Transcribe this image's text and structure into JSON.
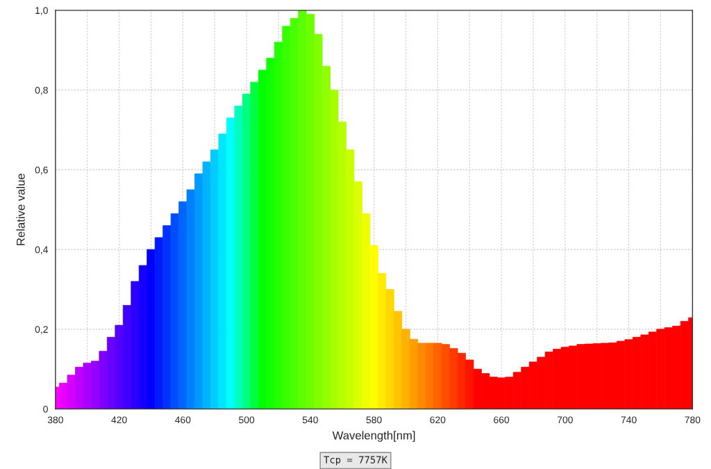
{
  "chart_data": {
    "type": "bar",
    "xlabel": "Wavelength[nm]",
    "ylabel": "Relative value",
    "x": [
      380,
      385,
      390,
      395,
      400,
      405,
      410,
      415,
      420,
      425,
      430,
      435,
      440,
      445,
      450,
      455,
      460,
      465,
      470,
      475,
      480,
      485,
      490,
      495,
      500,
      505,
      510,
      515,
      520,
      525,
      530,
      535,
      540,
      545,
      550,
      555,
      560,
      565,
      570,
      575,
      580,
      585,
      590,
      595,
      600,
      605,
      610,
      615,
      620,
      625,
      630,
      635,
      640,
      645,
      650,
      655,
      660,
      665,
      670,
      675,
      680,
      685,
      690,
      695,
      700,
      705,
      710,
      715,
      720,
      725,
      730,
      735,
      740,
      745,
      750,
      755,
      760,
      765,
      770,
      775,
      780
    ],
    "values": [
      0.055,
      0.065,
      0.085,
      0.105,
      0.115,
      0.12,
      0.145,
      0.18,
      0.21,
      0.26,
      0.32,
      0.36,
      0.4,
      0.43,
      0.46,
      0.49,
      0.52,
      0.55,
      0.59,
      0.62,
      0.65,
      0.69,
      0.73,
      0.76,
      0.79,
      0.82,
      0.85,
      0.88,
      0.92,
      0.96,
      0.98,
      1.0,
      0.99,
      0.94,
      0.86,
      0.8,
      0.72,
      0.65,
      0.57,
      0.49,
      0.41,
      0.34,
      0.3,
      0.245,
      0.2,
      0.175,
      0.165,
      0.165,
      0.165,
      0.162,
      0.152,
      0.14,
      0.123,
      0.1,
      0.089,
      0.08,
      0.078,
      0.08,
      0.092,
      0.105,
      0.118,
      0.13,
      0.143,
      0.15,
      0.155,
      0.158,
      0.162,
      0.163,
      0.164,
      0.165,
      0.166,
      0.17,
      0.174,
      0.18,
      0.186,
      0.193,
      0.2,
      0.204,
      0.208,
      0.22,
      0.229
    ],
    "colors": [
      "#ff00ff",
      "#ea00ff",
      "#d500ff",
      "#bf00ff",
      "#aa00ff",
      "#9500ff",
      "#8000ff",
      "#6a00ff",
      "#5500ff",
      "#4000ff",
      "#2b00ff",
      "#1500ff",
      "#0000ff",
      "#001aff",
      "#0033ff",
      "#004dff",
      "#0066ff",
      "#0080ff",
      "#0099ff",
      "#00b3ff",
      "#00ccff",
      "#00e6ff",
      "#00ffff",
      "#00ffbf",
      "#00ff80",
      "#00ff40",
      "#00ff00",
      "#12ff00",
      "#24ff00",
      "#37ff00",
      "#49ff00",
      "#5bff00",
      "#6dff00",
      "#80ff00",
      "#92ff00",
      "#a4ff00",
      "#b6ff00",
      "#c8ff00",
      "#dbff00",
      "#edff00",
      "#ffff00",
      "#ffeb00",
      "#ffd800",
      "#ffc400",
      "#ffb100",
      "#ff9d00",
      "#ff8900",
      "#ff7600",
      "#ff6200",
      "#ff4e00",
      "#ff3b00",
      "#ff2700",
      "#ff1400",
      "#ff0000",
      "#ff0000",
      "#ff0000",
      "#ff0000",
      "#ff0000",
      "#ff0000",
      "#ff0000",
      "#ff0000",
      "#ff0000",
      "#ff0000",
      "#ff0000",
      "#ff0000",
      "#ff0000",
      "#ff0000",
      "#ff0000",
      "#ff0000",
      "#ff0000",
      "#ff0000",
      "#ff0000",
      "#ff0000",
      "#ff0000",
      "#ff0000",
      "#ff0000",
      "#ff0000",
      "#ff0000",
      "#ff0000",
      "#ff0000",
      "#ff0000"
    ],
    "xlim": [
      380,
      780
    ],
    "xticks": [
      380,
      {
        "value": 400,
        "label": null
      },
      420,
      {
        "value": 440,
        "label": null
      },
      460,
      {
        "value": 480,
        "label": null
      },
      500,
      {
        "value": 520,
        "label": null
      },
      540,
      {
        "value": 560,
        "label": null
      },
      580,
      {
        "value": 600,
        "label": null
      },
      620,
      {
        "value": 640,
        "label": null
      },
      660,
      {
        "value": 680,
        "label": null
      },
      700,
      {
        "value": 720,
        "label": null
      },
      740,
      {
        "value": 760,
        "label": null
      },
      780
    ],
    "ylim": [
      0,
      1.0
    ],
    "yticks": [
      0,
      {
        "value": 0.2,
        "label": "0,2"
      },
      {
        "value": 0.4,
        "label": "0,4"
      },
      {
        "value": 0.6,
        "label": "0,6"
      },
      {
        "value": 0.8,
        "label": "0,8"
      },
      {
        "value": 1.0,
        "label": "1,0"
      }
    ],
    "grid": true,
    "annotations": [
      "Tcp = 7757K"
    ]
  }
}
